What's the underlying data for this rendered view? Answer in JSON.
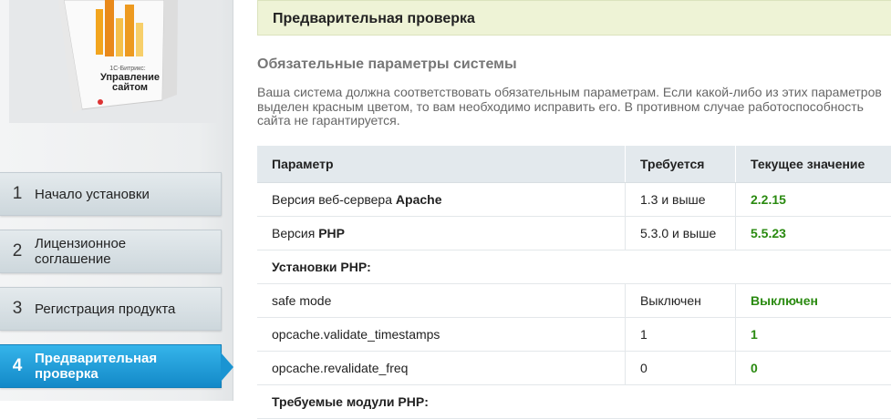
{
  "sidebar": {
    "product_box": {
      "brand": "1С-Битрикс:",
      "product": "Управление сайтом"
    },
    "steps": [
      {
        "number": "1",
        "label": "Начало установки"
      },
      {
        "number": "2",
        "label": "Лицензионное соглашение"
      },
      {
        "number": "3",
        "label": "Регистрация продукта"
      },
      {
        "number": "4",
        "label": "Предварительная проверка"
      }
    ]
  },
  "header": {
    "title": "Предварительная проверка"
  },
  "main": {
    "section_title": "Обязательные параметры системы",
    "description": "Ваша система должна соответствовать обязательным параметрам. Если какой-либо из этих параметров выделен красным цветом, то вам необходимо исправить его. В противном случае работоспособность сайта не гарантируется.",
    "table": {
      "columns": [
        "Параметр",
        "Требуется",
        "Текущее значение"
      ],
      "rows": [
        {
          "param": "Версия веб-сервера",
          "param_bold": "Apache",
          "required": "1.3 и выше",
          "current": "2.2.15"
        },
        {
          "param": "Версия",
          "param_bold": "PHP",
          "required": "5.3.0 и выше",
          "current": "5.5.23"
        },
        {
          "group": "Установки PHP:"
        },
        {
          "param": "safe mode",
          "required": "Выключен",
          "current": "Выключен"
        },
        {
          "param": "opcache.validate_timestamps",
          "required": "1",
          "current": "1"
        },
        {
          "param": "opcache.revalidate_freq",
          "required": "0",
          "current": "0"
        },
        {
          "group": "Требуемые модули PHP:"
        }
      ]
    }
  }
}
